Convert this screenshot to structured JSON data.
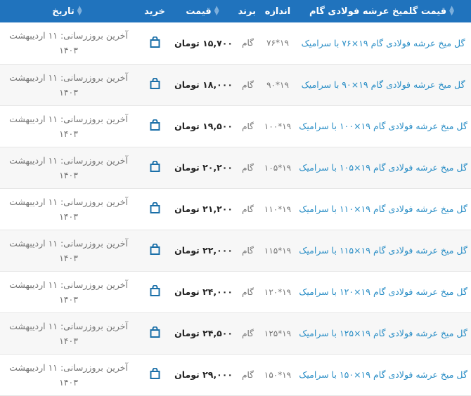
{
  "header": {
    "name": "قیمت گلمیخ عرشه فولادی گام",
    "size": "اندازه",
    "brand": "برند",
    "price": "قیمت",
    "buy": "خرید",
    "date": "تاریخ"
  },
  "colors": {
    "header_bg": "#2073bd",
    "link": "#2a8ec6",
    "icon": "#1a6fa8"
  },
  "rows": [
    {
      "name": "گل میخ عرشه فولادی گام ۱۹×۷۶ با سرامیک",
      "size": "۱۹*۷۶",
      "brand": "گام",
      "price": "۱۵,۷۰۰ تومان",
      "date": "آخرین بروزرسانی: ۱۱ اردیبهشت ۱۴۰۳"
    },
    {
      "name": "گل میخ عرشه فولادی گام ۱۹×۹۰ با سرامیک",
      "size": "۱۹*۹۰",
      "brand": "گام",
      "price": "۱۸,۰۰۰ تومان",
      "date": "آخرین بروزرسانی: ۱۱ اردیبهشت ۱۴۰۳"
    },
    {
      "name": "گل میخ عرشه فولادی گام ۱۹×۱۰۰ با سرامیک",
      "size": "۱۹*۱۰۰",
      "brand": "گام",
      "price": "۱۹,۵۰۰ تومان",
      "date": "آخرین بروزرسانی: ۱۱ اردیبهشت ۱۴۰۳"
    },
    {
      "name": "گل میخ عرشه فولادی گام ۱۹×۱۰۵ با سرامیک",
      "size": "۱۹*۱۰۵",
      "brand": "گام",
      "price": "۲۰,۲۰۰ تومان",
      "date": "آخرین بروزرسانی: ۱۱ اردیبهشت ۱۴۰۳"
    },
    {
      "name": "گل میخ عرشه فولادی گام ۱۹×۱۱۰ با سرامیک",
      "size": "۱۹*۱۱۰",
      "brand": "گام",
      "price": "۲۱,۲۰۰ تومان",
      "date": "آخرین بروزرسانی: ۱۱ اردیبهشت ۱۴۰۳"
    },
    {
      "name": "گل میخ عرشه فولادی گام ۱۹×۱۱۵ با سرامیک",
      "size": "۱۹*۱۱۵",
      "brand": "گام",
      "price": "۲۲,۰۰۰ تومان",
      "date": "آخرین بروزرسانی: ۱۱ اردیبهشت ۱۴۰۳"
    },
    {
      "name": "گل میخ عرشه فولادی گام ۱۹×۱۲۰ با سرامیک",
      "size": "۱۹*۱۲۰",
      "brand": "گام",
      "price": "۲۴,۰۰۰ تومان",
      "date": "آخرین بروزرسانی: ۱۱ اردیبهشت ۱۴۰۳"
    },
    {
      "name": "گل میخ عرشه فولادی گام ۱۹×۱۲۵ با سرامیک",
      "size": "۱۹*۱۲۵",
      "brand": "گام",
      "price": "۲۴,۵۰۰ تومان",
      "date": "آخرین بروزرسانی: ۱۱ اردیبهشت ۱۴۰۳"
    },
    {
      "name": "گل میخ عرشه فولادی گام ۱۹×۱۵۰ با سرامیک",
      "size": "۱۹*۱۵۰",
      "brand": "گام",
      "price": "۲۹,۰۰۰ تومان",
      "date": "آخرین بروزرسانی: ۱۱ اردیبهشت ۱۴۰۳"
    }
  ]
}
